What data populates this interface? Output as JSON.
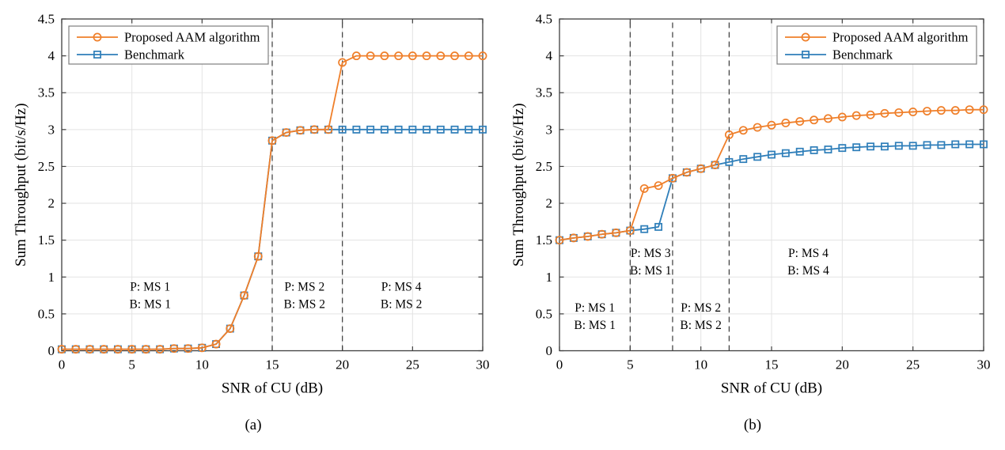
{
  "figure": {
    "colors": {
      "proposed": "#EF7F2A",
      "benchmark": "#2E7EB9",
      "grid": "#E3E3E3",
      "axis": "#3F3F3F",
      "dashed": "#3A3A3A",
      "text": "#000000",
      "legend_border": "#7E7E7E",
      "background": "#FFFFFF"
    }
  },
  "chart_data": [
    {
      "id": "a",
      "type": "line",
      "caption": "(a)",
      "xlabel": "SNR of CU (dB)",
      "ylabel": "Sum Throughput (bit/s/Hz)",
      "xlim": [
        0,
        30
      ],
      "ylim": [
        0,
        4.5
      ],
      "x_ticks": [
        0,
        5,
        10,
        15,
        20,
        25,
        30
      ],
      "y_ticks": [
        0,
        0.5,
        1,
        1.5,
        2,
        2.5,
        3,
        3.5,
        4,
        4.5
      ],
      "grid": true,
      "legend_position": "top-left",
      "x": [
        0,
        1,
        2,
        3,
        4,
        5,
        6,
        7,
        8,
        9,
        10,
        11,
        12,
        13,
        14,
        15,
        16,
        17,
        18,
        19,
        20,
        21,
        22,
        23,
        24,
        25,
        26,
        27,
        28,
        29,
        30
      ],
      "series": [
        {
          "name": "Proposed AAM algorithm",
          "color_key": "proposed",
          "marker": "circle",
          "values": [
            0.02,
            0.02,
            0.02,
            0.02,
            0.02,
            0.02,
            0.02,
            0.02,
            0.03,
            0.03,
            0.04,
            0.09,
            0.3,
            0.75,
            1.28,
            2.85,
            2.96,
            2.99,
            3.0,
            3.0,
            3.91,
            4.0,
            4.0,
            4.0,
            4.0,
            4.0,
            4.0,
            4.0,
            4.0,
            4.0,
            4.0
          ]
        },
        {
          "name": "Benchmark",
          "color_key": "benchmark",
          "marker": "square",
          "values": [
            0.02,
            0.02,
            0.02,
            0.02,
            0.02,
            0.02,
            0.02,
            0.02,
            0.03,
            0.03,
            0.04,
            0.09,
            0.3,
            0.75,
            1.28,
            2.85,
            2.96,
            2.99,
            3.0,
            3.0,
            3.0,
            3.0,
            3.0,
            3.0,
            3.0,
            3.0,
            3.0,
            3.0,
            3.0,
            3.0,
            3.0
          ]
        }
      ],
      "dashed_lines_x": [
        15,
        20
      ],
      "annotations": [
        {
          "lines": [
            "P: MS 1",
            "B: MS 1"
          ],
          "x": 6.3,
          "y": 0.76
        },
        {
          "lines": [
            "P: MS 2",
            "B: MS 2"
          ],
          "x": 17.3,
          "y": 0.76
        },
        {
          "lines": [
            "P: MS 4",
            "B: MS 2"
          ],
          "x": 24.2,
          "y": 0.76
        }
      ]
    },
    {
      "id": "b",
      "type": "line",
      "caption": "(b)",
      "xlabel": "SNR of CU (dB)",
      "ylabel": "Sum Throughput (bit/s/Hz)",
      "xlim": [
        0,
        30
      ],
      "ylim": [
        0,
        4.5
      ],
      "x_ticks": [
        0,
        5,
        10,
        15,
        20,
        25,
        30
      ],
      "y_ticks": [
        0,
        0.5,
        1,
        1.5,
        2,
        2.5,
        3,
        3.5,
        4,
        4.5
      ],
      "grid": true,
      "legend_position": "top-right",
      "x": [
        0,
        1,
        2,
        3,
        4,
        5,
        6,
        7,
        8,
        9,
        10,
        11,
        12,
        13,
        14,
        15,
        16,
        17,
        18,
        19,
        20,
        21,
        22,
        23,
        24,
        25,
        26,
        27,
        28,
        29,
        30
      ],
      "series": [
        {
          "name": "Proposed AAM algorithm",
          "color_key": "proposed",
          "marker": "circle",
          "values": [
            1.5,
            1.53,
            1.55,
            1.58,
            1.6,
            1.63,
            2.2,
            2.24,
            2.34,
            2.42,
            2.47,
            2.52,
            2.93,
            2.99,
            3.03,
            3.06,
            3.09,
            3.11,
            3.13,
            3.15,
            3.17,
            3.19,
            3.2,
            3.22,
            3.23,
            3.24,
            3.25,
            3.26,
            3.26,
            3.27,
            3.27
          ]
        },
        {
          "name": "Benchmark",
          "color_key": "benchmark",
          "marker": "square",
          "values": [
            1.5,
            1.53,
            1.55,
            1.58,
            1.6,
            1.63,
            1.65,
            1.68,
            2.34,
            2.42,
            2.47,
            2.52,
            2.56,
            2.6,
            2.63,
            2.66,
            2.68,
            2.7,
            2.72,
            2.73,
            2.75,
            2.76,
            2.77,
            2.77,
            2.78,
            2.78,
            2.79,
            2.79,
            2.8,
            2.8,
            2.8
          ]
        }
      ],
      "dashed_lines_x": [
        5,
        8,
        12
      ],
      "annotations": [
        {
          "lines": [
            "P: MS 1",
            "B: MS 1"
          ],
          "x": 2.5,
          "y": 0.48
        },
        {
          "lines": [
            "P: MS 3",
            "B: MS 1"
          ],
          "x": 6.45,
          "y": 1.22
        },
        {
          "lines": [
            "P: MS 2",
            "B: MS 2"
          ],
          "x": 10.0,
          "y": 0.48
        },
        {
          "lines": [
            "P: MS 4",
            "B: MS 4"
          ],
          "x": 17.6,
          "y": 1.22
        }
      ]
    }
  ]
}
